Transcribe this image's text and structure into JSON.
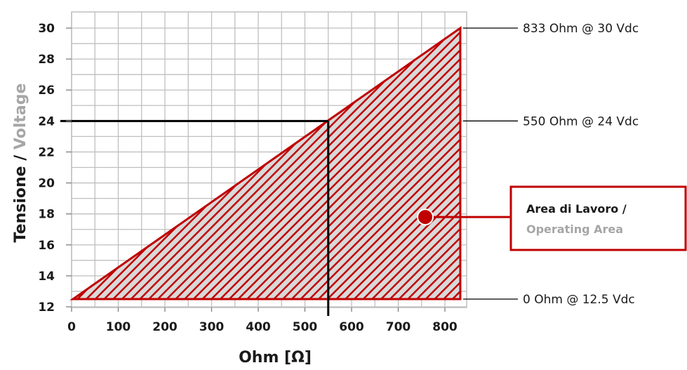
{
  "chart_data": {
    "type": "area",
    "xlabel": "Ohm [Ω]",
    "ylabel_it": "Tensione / ",
    "ylabel_en": "Voltage",
    "xlim": [
      0,
      833
    ],
    "ylim": [
      12,
      30
    ],
    "xticks": [
      0,
      100,
      200,
      300,
      400,
      500,
      600,
      700,
      800
    ],
    "yticks": [
      12,
      14,
      16,
      18,
      20,
      22,
      24,
      26,
      28,
      30
    ],
    "grid": true,
    "polygon": [
      {
        "x": 0,
        "y": 12.5
      },
      {
        "x": 833,
        "y": 30
      },
      {
        "x": 833,
        "y": 12.5
      }
    ],
    "reference_point": {
      "x": 550,
      "y": 24
    },
    "annotations": [
      {
        "text": "833 Ohm @ 30 Vdc",
        "x": 833,
        "y": 30
      },
      {
        "text": "550 Ohm @ 24 Vdc",
        "x": 550,
        "y": 24
      },
      {
        "text": "0 Ohm @ 12.5 Vdc",
        "x": 833,
        "y": 12.5
      }
    ],
    "legend": {
      "line1": "Area di Lavoro /",
      "line2": "Operating Area",
      "placement": "right"
    },
    "colors": {
      "area_border": "#c00000",
      "hatch": "#c00000",
      "area_fill": "#d9d9d9",
      "grid": "#bfbfbf",
      "reference_line": "#000000",
      "english_text": "#a6a6a6"
    }
  }
}
